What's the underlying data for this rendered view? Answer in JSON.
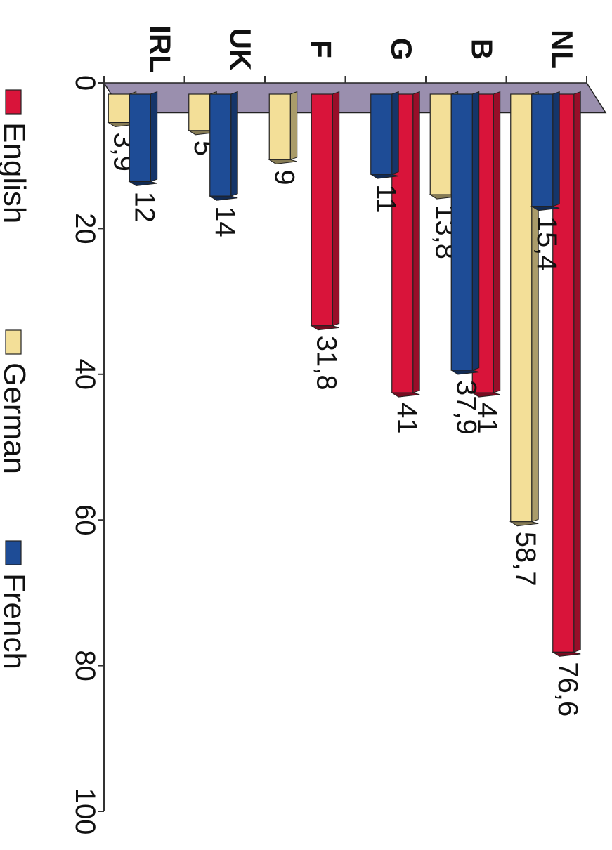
{
  "chart_data": {
    "type": "bar",
    "orientation": "horizontal",
    "rotated_view": "90deg-clockwise",
    "categories": [
      "IRL",
      "UK",
      "F",
      "G",
      "B",
      "NL"
    ],
    "series": [
      {
        "name": "English",
        "color": "#d9143a",
        "values": [
          null,
          null,
          31.8,
          41,
          41,
          76.6
        ],
        "labels": [
          "",
          "",
          "31,8",
          "41",
          "41",
          "76,6"
        ]
      },
      {
        "name": "German",
        "color": "#f3df98",
        "values": [
          3.9,
          5,
          9,
          null,
          13.8,
          58.7
        ],
        "labels": [
          "3,9",
          "5",
          "9",
          "",
          "13,8",
          "58,7"
        ]
      },
      {
        "name": "French",
        "color": "#1e4c96",
        "values": [
          12,
          14,
          null,
          11,
          37.9,
          15.4
        ],
        "labels": [
          "12",
          "14",
          "",
          "11",
          "37,9",
          "15,4"
        ]
      }
    ],
    "xlim": [
      0,
      100
    ],
    "ticks": [
      "0",
      "20",
      "40",
      "60",
      "80",
      "100"
    ],
    "tick_values": [
      0,
      20,
      40,
      60,
      80,
      100
    ],
    "grid": false,
    "legend_position": "bottom",
    "floor_color": "#9a8fae"
  }
}
